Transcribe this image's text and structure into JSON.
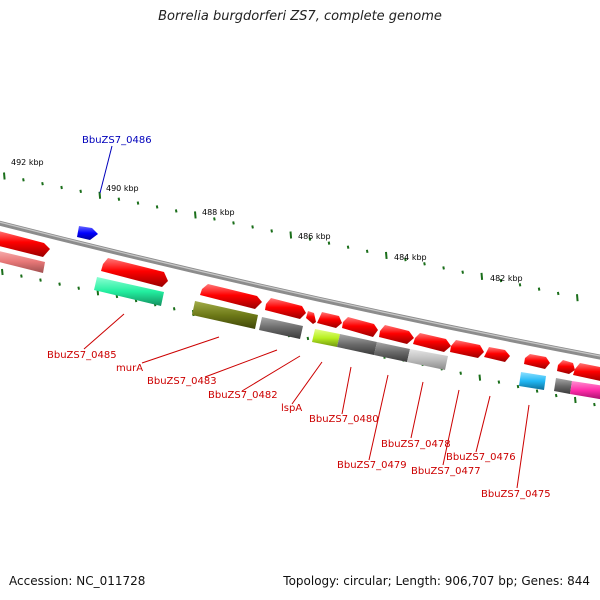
{
  "title": "Borrelia burgdorferi ZS7, complete genome",
  "footer": {
    "accession": "Accession: NC_011728",
    "topology": "Topology: circular; Length: 906,707 bp; Genes: 844"
  },
  "ruler": {
    "labels": [
      "492 kbp",
      "490 kbp",
      "488 kbp",
      "486 kbp",
      "484 kbp",
      "482 kbp"
    ]
  },
  "gene_labels": [
    "BbuZS7_0486",
    "BbuZS7_0485",
    "murA",
    "BbuZS7_0483",
    "BbuZS7_0482",
    "lspA",
    "BbuZS7_0480",
    "BbuZS7_0479",
    "BbuZS7_0478",
    "BbuZS7_0477",
    "BbuZS7_0476",
    "BbuZS7_0475"
  ],
  "colors": {
    "cds_red": "#ff0000",
    "pseudo_pink": "#e87878",
    "teal": "#33f0a8",
    "olive": "#6e7a18",
    "gray_dark": "#6a6a6a",
    "gray_light": "#bdbdbd",
    "lime": "#b8f020",
    "cyan": "#21b8f5",
    "magenta": "#ff2aa8",
    "blue_gene": "#0000ff",
    "backbone": "#8c8c8c",
    "tick_green": "#1a6e1a",
    "label_red": "#cc0000",
    "label_blue": "#0000bb"
  }
}
